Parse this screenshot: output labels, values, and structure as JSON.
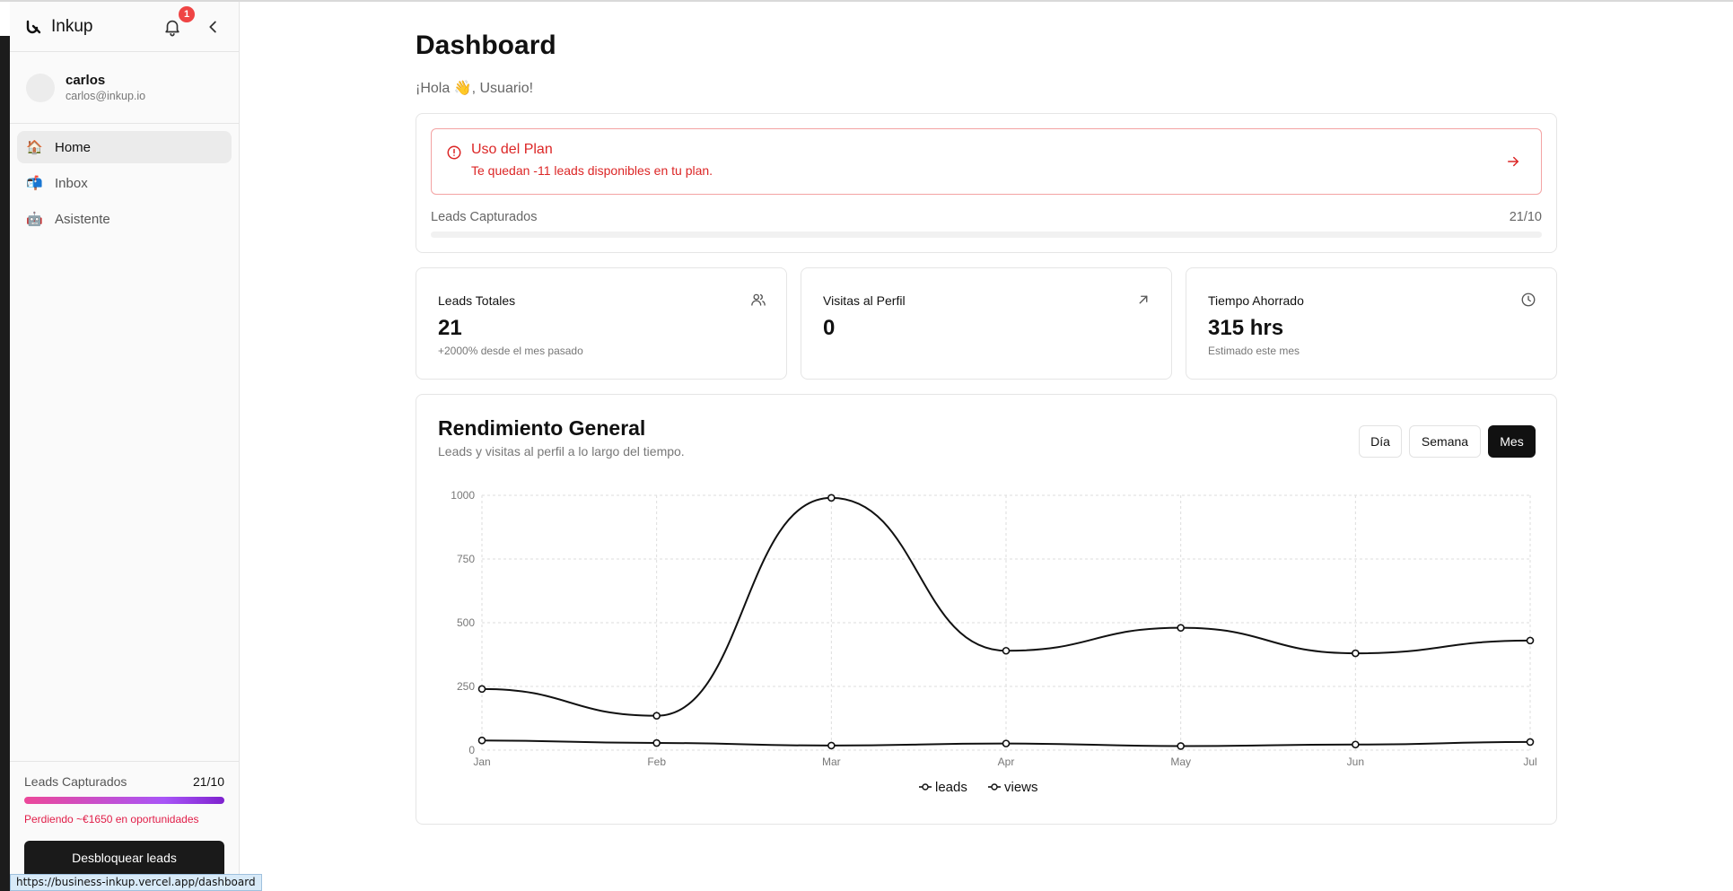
{
  "app": {
    "name": "Inkup",
    "notifications_count": "1"
  },
  "user": {
    "name": "carlos",
    "email": "carlos@inkup.io"
  },
  "nav": [
    {
      "id": "home",
      "emoji": "🏠",
      "label": "Home",
      "active": true
    },
    {
      "id": "inbox",
      "emoji": "📬",
      "label": "Inbox",
      "active": false
    },
    {
      "id": "asistente",
      "emoji": "🤖",
      "label": "Asistente",
      "active": false
    }
  ],
  "sidebar_footer": {
    "label": "Leads Capturados",
    "value": "21/10",
    "warning": "Perdiendo ~€1650 en oportunidades",
    "unlock_label": "Desbloquear leads"
  },
  "status_url": "https://business-inkup.vercel.app/dashboard",
  "page": {
    "title": "Dashboard",
    "greeting": "¡Hola 👋, Usuario!"
  },
  "plan": {
    "alert_title": "Uso del Plan",
    "alert_desc": "Te quedan -11 leads disponibles en tu plan.",
    "label": "Leads Capturados",
    "value": "21/10"
  },
  "stats": [
    {
      "title": "Leads Totales",
      "value": "21",
      "sub": "+2000% desde el mes pasado",
      "icon": "users-icon"
    },
    {
      "title": "Visitas al Perfil",
      "value": "0",
      "sub": "",
      "icon": "arrow-up-right-icon"
    },
    {
      "title": "Tiempo Ahorrado",
      "value": "315 hrs",
      "sub": "Estimado este mes",
      "icon": "clock-icon"
    }
  ],
  "chart": {
    "title": "Rendimiento General",
    "subtitle": "Leads y visitas al perfil a lo largo del tiempo.",
    "ranges": [
      {
        "label": "Día",
        "active": false
      },
      {
        "label": "Semana",
        "active": false
      },
      {
        "label": "Mes",
        "active": true
      }
    ]
  },
  "chart_data": {
    "type": "line",
    "x": [
      "Jan",
      "Feb",
      "Mar",
      "Apr",
      "May",
      "Jun",
      "Jul"
    ],
    "series": [
      {
        "name": "leads",
        "values": [
          240,
          135,
          990,
          390,
          480,
          380,
          430
        ]
      },
      {
        "name": "views",
        "values": [
          38,
          28,
          18,
          26,
          16,
          22,
          32
        ]
      }
    ],
    "yticks": [
      0,
      250,
      500,
      750,
      1000
    ],
    "ylim": [
      0,
      1000
    ],
    "grid": true,
    "legend": "bottom-center",
    "line_color": "#111111",
    "grid_color": "#dddddd"
  }
}
